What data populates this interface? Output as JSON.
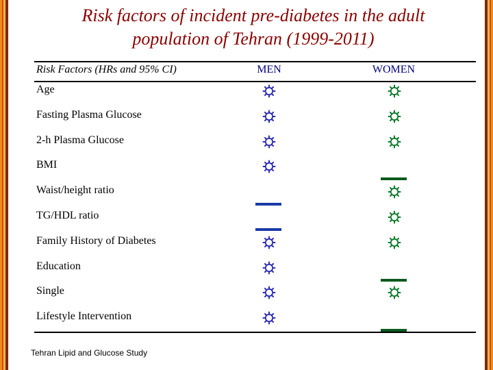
{
  "title": {
    "line1": "Risk factors of  incident pre-diabetes in the adult",
    "line2": "population of Tehran (1999-2011)"
  },
  "table": {
    "header": {
      "factor": "Risk Factors  (HRs and 95% CI)",
      "men": "MEN",
      "women": "WOMEN"
    },
    "rows": [
      {
        "label": "Age",
        "men": "significant",
        "women": "significant"
      },
      {
        "label": "Fasting Plasma Glucose",
        "men": "significant",
        "women": "significant"
      },
      {
        "label": "2-h Plasma Glucose",
        "men": "significant",
        "women": "significant"
      },
      {
        "label": "BMI",
        "men": "significant",
        "women": "not-significant"
      },
      {
        "label": "Waist/height ratio",
        "men": "not-significant",
        "women": "significant"
      },
      {
        "label": "TG/HDL ratio",
        "men": "not-significant",
        "women": "significant"
      },
      {
        "label": "Family History of Diabetes",
        "men": "significant",
        "women": "significant"
      },
      {
        "label": "Education",
        "men": "significant",
        "women": "not-significant"
      },
      {
        "label": "Single",
        "men": "significant",
        "women": "significant"
      },
      {
        "label": "Lifestyle Intervention",
        "men": "significant",
        "women": "not-significant"
      }
    ]
  },
  "footer": "Tehran Lipid and Glucose Study",
  "icons": {
    "significant": "gear-icon",
    "not_significant_men": "blue-dash",
    "not_significant_women": "green-dash"
  },
  "colors": {
    "title": "#8b0000",
    "header_col": "#000080",
    "gear_men": "#2b2bb5",
    "gear_women": "#0b7a2a",
    "dash_men": "#1a3aa8",
    "dash_women": "#0b5a1e",
    "border": "#f08a1c"
  }
}
